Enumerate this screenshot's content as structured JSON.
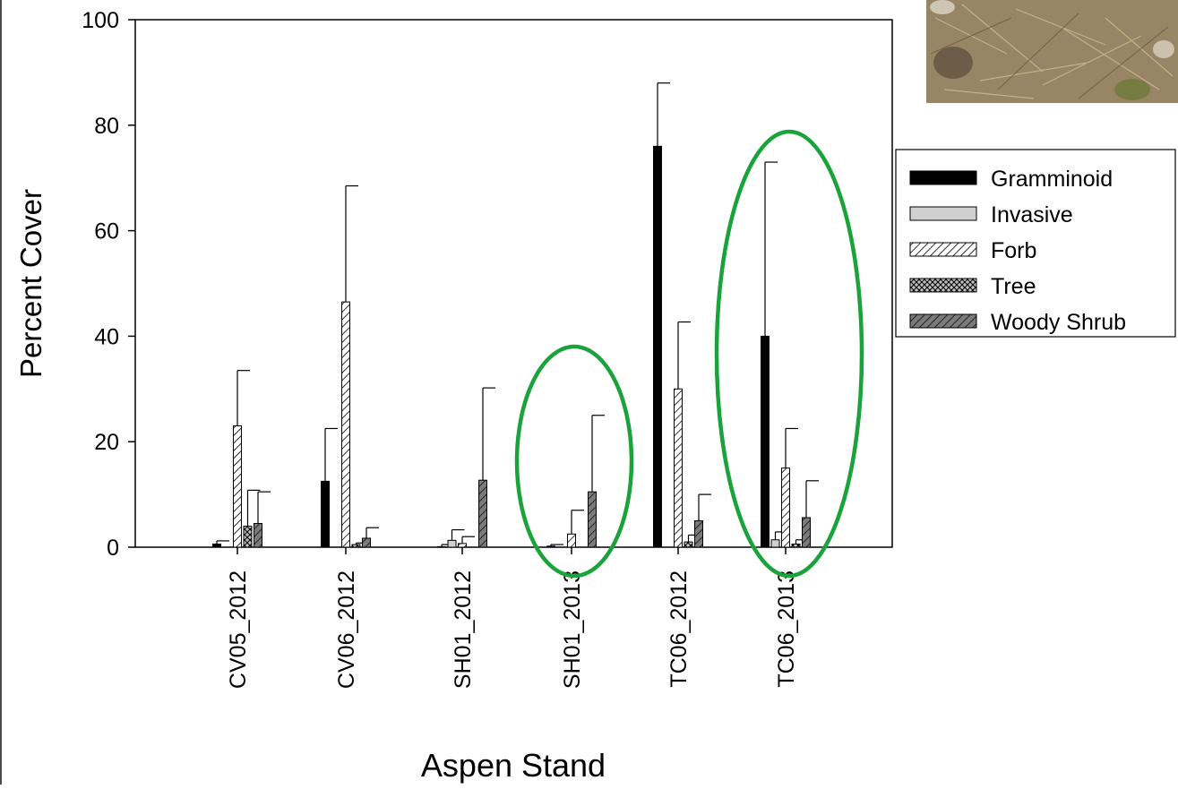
{
  "chart_data": {
    "type": "bar",
    "title": "",
    "xlabel": "Aspen Stand",
    "ylabel": "Percent Cover",
    "ylim": [
      0,
      100
    ],
    "yticks": [
      0,
      20,
      40,
      60,
      80,
      100
    ],
    "grid": false,
    "legend_position": "right",
    "categories": [
      "CV05_2012",
      "CV06_2012",
      "SH01_2012",
      "SH01_2013",
      "TC06_2012",
      "TC06_2013"
    ],
    "series": [
      {
        "name": "Gramminoid",
        "pattern": "solid-black",
        "values": [
          0.6,
          12.5,
          0.1,
          0.2,
          76,
          40
        ],
        "errors": [
          0.6,
          10,
          0.4,
          0.3,
          12,
          33
        ]
      },
      {
        "name": "Invasive",
        "pattern": "solid-light-gray",
        "values": [
          0,
          0,
          1.3,
          0,
          0,
          1.4
        ],
        "errors": [
          0,
          0,
          2,
          0,
          0,
          1.5
        ]
      },
      {
        "name": "Forb",
        "pattern": "diagonal-hatch",
        "values": [
          23,
          46.5,
          0.7,
          2.5,
          30,
          15
        ],
        "errors": [
          10.5,
          22,
          1.3,
          4.5,
          12.7,
          7.5
        ]
      },
      {
        "name": "Tree",
        "pattern": "cross-hatch",
        "values": [
          4,
          0.5,
          0,
          0,
          1,
          0.6
        ],
        "errors": [
          6.8,
          0.3,
          0,
          0,
          1.3,
          0.8
        ]
      },
      {
        "name": "Woody Shrub",
        "pattern": "dark-gray-hatch",
        "values": [
          4.5,
          1.7,
          12.7,
          10.5,
          5,
          5.6
        ],
        "errors": [
          6,
          2,
          17.5,
          14.5,
          5,
          7
        ]
      }
    ],
    "annotations": [
      "green-ellipse-SH01_2013",
      "green-ellipse-TC06_2013"
    ],
    "colors": {
      "highlight": "#1aa33a",
      "axis": "#000000",
      "gramminoid": "#000000",
      "invasive": "#d0d0d0",
      "forb": "#ffffff",
      "tree": "#bdbdbd",
      "shrub": "#7a7a7a"
    }
  }
}
